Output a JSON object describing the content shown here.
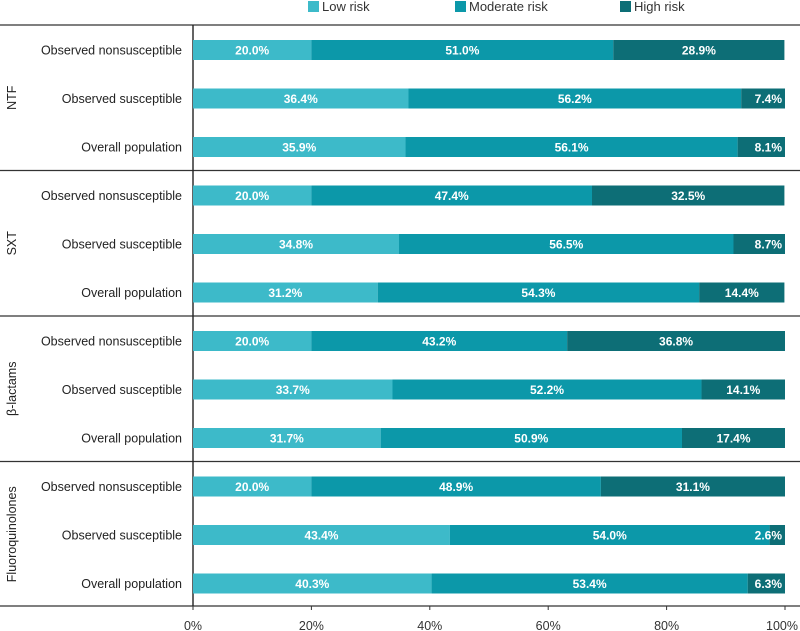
{
  "chart_data": {
    "type": "bar",
    "orientation": "horizontal",
    "stacked": true,
    "percent_stacked": true,
    "title": "",
    "xlabel": "",
    "ylabel": "",
    "xlim": [
      0,
      100
    ],
    "x_ticks": [
      "0%",
      "20%",
      "40%",
      "60%",
      "80%",
      "100%"
    ],
    "legend_position": "top",
    "series": [
      {
        "name": "Low risk",
        "color": "#3dbac9"
      },
      {
        "name": "Moderate risk",
        "color": "#0c98a9"
      },
      {
        "name": "High risk",
        "color": "#0d6e76"
      }
    ],
    "groups": [
      {
        "name": "NTF",
        "rows": [
          {
            "label": "Observed nonsusceptible",
            "values": [
              20.0,
              51.0,
              28.9
            ],
            "labels": [
              "20.0%",
              "51.0%",
              "28.9%"
            ]
          },
          {
            "label": "Observed susceptible",
            "values": [
              36.4,
              56.2,
              7.4
            ],
            "labels": [
              "36.4%",
              "56.2%",
              "7.4%"
            ]
          },
          {
            "label": "Overall population",
            "values": [
              35.9,
              56.1,
              8.1
            ],
            "labels": [
              "35.9%",
              "56.1%",
              "8.1%"
            ]
          }
        ]
      },
      {
        "name": "SXT",
        "rows": [
          {
            "label": "Observed nonsusceptible",
            "values": [
              20.0,
              47.4,
              32.5
            ],
            "labels": [
              "20.0%",
              "47.4%",
              "32.5%"
            ]
          },
          {
            "label": "Observed susceptible",
            "values": [
              34.8,
              56.5,
              8.7
            ],
            "labels": [
              "34.8%",
              "56.5%",
              "8.7%"
            ]
          },
          {
            "label": "Overall population",
            "values": [
              31.2,
              54.3,
              14.4
            ],
            "labels": [
              "31.2%",
              "54.3%",
              "14.4%"
            ]
          }
        ]
      },
      {
        "name": "β-lactams",
        "rows": [
          {
            "label": "Observed nonsusceptible",
            "values": [
              20.0,
              43.2,
              36.8
            ],
            "labels": [
              "20.0%",
              "43.2%",
              "36.8%"
            ]
          },
          {
            "label": "Observed susceptible",
            "values": [
              33.7,
              52.2,
              14.1
            ],
            "labels": [
              "33.7%",
              "52.2%",
              "14.1%"
            ]
          },
          {
            "label": "Overall population",
            "values": [
              31.7,
              50.9,
              17.4
            ],
            "labels": [
              "31.7%",
              "50.9%",
              "17.4%"
            ]
          }
        ]
      },
      {
        "name": "Fluoroquinolones",
        "rows": [
          {
            "label": "Observed nonsusceptible",
            "values": [
              20.0,
              48.9,
              31.1
            ],
            "labels": [
              "20.0%",
              "48.9%",
              "31.1%"
            ]
          },
          {
            "label": "Observed susceptible",
            "values": [
              43.4,
              54.0,
              2.6
            ],
            "labels": [
              "43.4%",
              "54.0%",
              "2.6%"
            ]
          },
          {
            "label": "Overall population",
            "values": [
              40.3,
              53.4,
              6.3
            ],
            "labels": [
              "40.3%",
              "53.4%",
              "6.3%"
            ]
          }
        ]
      }
    ]
  }
}
